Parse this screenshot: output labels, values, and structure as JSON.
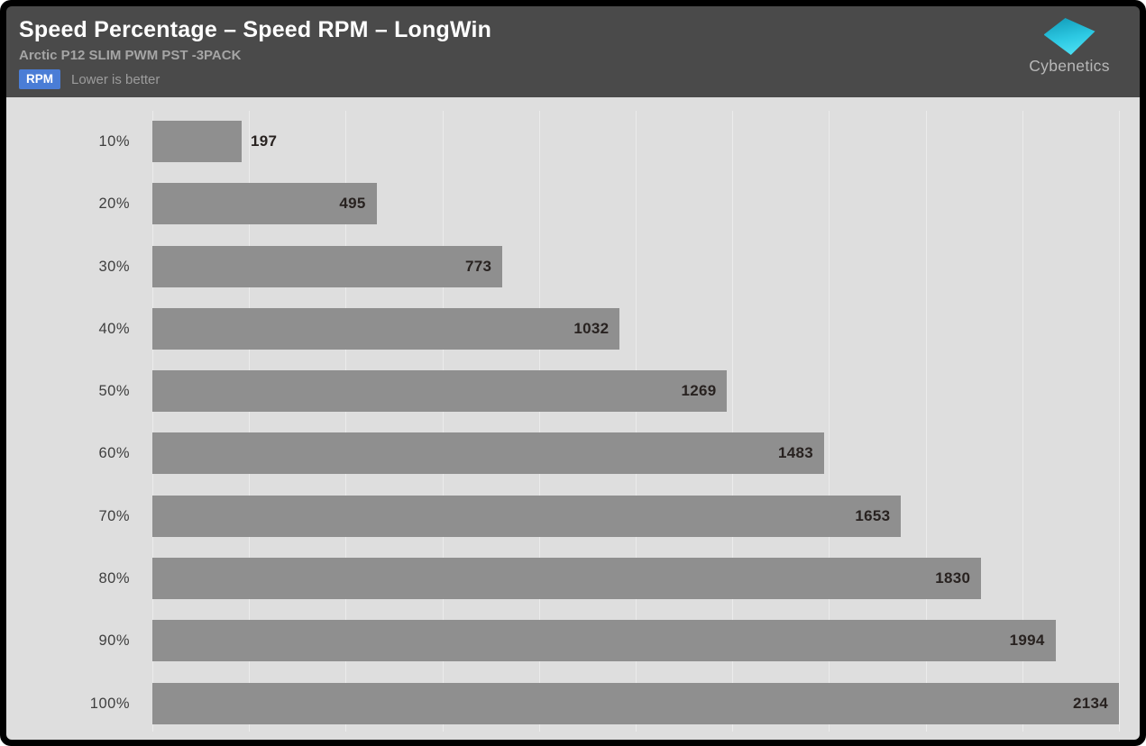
{
  "header": {
    "title": "Speed Percentage – Speed RPM – LongWin",
    "subtitle": "Arctic P12 SLIM PWM PST -3PACK",
    "badge_label": "RPM",
    "badge_color": "#4a7dd6",
    "note": "Lower is better",
    "background": "#4a4a4a"
  },
  "logo": {
    "text": "Cybenetics",
    "shape": "cyan-parallelogram-logo",
    "accent_colors": [
      "#14a0bd",
      "#55e5f8"
    ]
  },
  "chart_data": {
    "type": "bar",
    "orientation": "horizontal",
    "title": "Speed Percentage – Speed RPM – LongWin",
    "subtitle": "Arctic P12 SLIM PWM PST -3PACK",
    "unit": "RPM",
    "lower_is_better": true,
    "categories": [
      "10%",
      "20%",
      "30%",
      "40%",
      "50%",
      "60%",
      "70%",
      "80%",
      "90%",
      "100%"
    ],
    "values": [
      197,
      495,
      773,
      1032,
      1269,
      1483,
      1653,
      1830,
      1994,
      2134
    ],
    "xlabel": "",
    "ylabel": "Speed Percentage",
    "xlim": [
      0,
      2134
    ],
    "gridlines": 11,
    "grid": "vertical",
    "legend": "none",
    "bar_color": "#8f8f8f",
    "plot_background": "#dedede",
    "value_label_color": "#282220",
    "category_label_color": "#3e3e3e"
  }
}
